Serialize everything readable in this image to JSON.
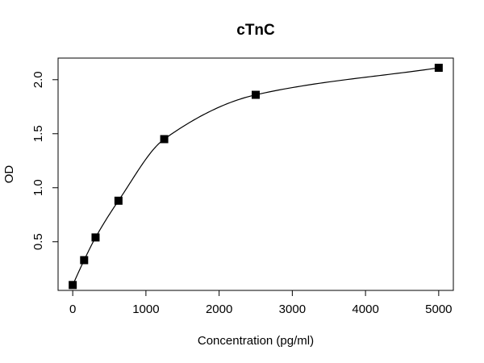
{
  "chart_data": {
    "type": "scatter",
    "title": "cTnC",
    "xlabel": "Concentration (pg/ml)",
    "ylabel": "OD",
    "xlim": [
      -200,
      5200
    ],
    "ylim": [
      0.05,
      2.2
    ],
    "x_ticks": [
      0,
      1000,
      2000,
      3000,
      4000,
      5000
    ],
    "y_ticks": [
      0.5,
      1.0,
      1.5,
      2.0
    ],
    "x_tick_labels": [
      "0",
      "1000",
      "2000",
      "3000",
      "4000",
      "5000"
    ],
    "y_tick_labels": [
      "0.5",
      "1.0",
      "1.5",
      "2.0"
    ],
    "grid": false,
    "legend": "none",
    "series": [
      {
        "marker": "square",
        "x": [
          0,
          156,
          312,
          625,
          1250,
          2500,
          5000
        ],
        "y": [
          0.1,
          0.33,
          0.54,
          0.88,
          1.45,
          1.86,
          2.11
        ]
      }
    ],
    "fit_curve": true
  }
}
